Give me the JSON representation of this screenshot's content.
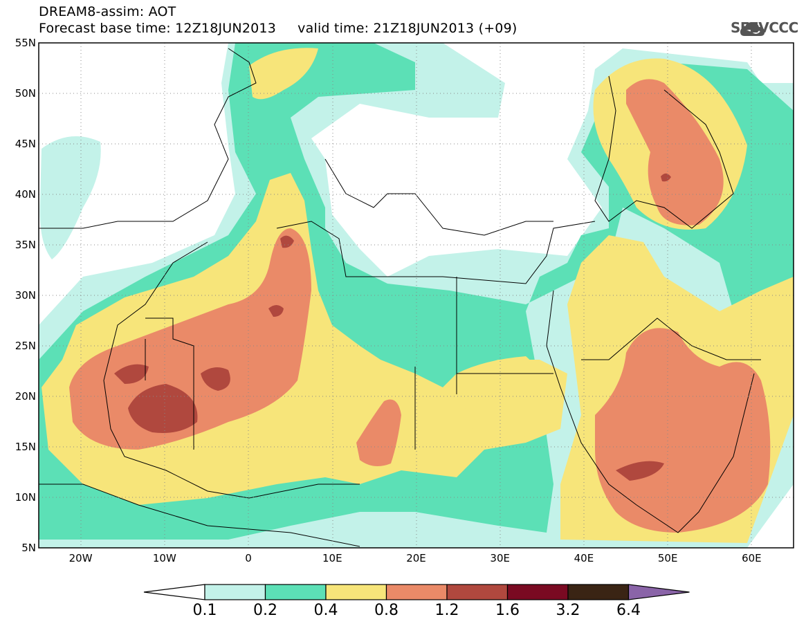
{
  "header": {
    "title_line1": "DREAM8-assim: AOT",
    "title_line2": "Forecast base time: 12Z18JUN2013     valid time: 21Z18JUN2013 (+09)"
  },
  "logo": {
    "text": "SEEVCCC",
    "icon": "cloud-icon"
  },
  "map": {
    "lon_range": [
      -25,
      65
    ],
    "lat_range": [
      5,
      55
    ],
    "lat_ticks": [
      "55N",
      "50N",
      "45N",
      "40N",
      "35N",
      "30N",
      "25N",
      "20N",
      "15N",
      "10N",
      "5N"
    ],
    "lon_ticks": [
      "20W",
      "10W",
      "0",
      "10E",
      "20E",
      "30E",
      "40E",
      "50E",
      "60E"
    ],
    "grid": "dotted"
  },
  "colorbar": {
    "labels": [
      "0.1",
      "0.2",
      "0.4",
      "0.8",
      "1.2",
      "1.6",
      "3.2",
      "6.4"
    ],
    "colors": [
      "#ffffff",
      "#c3f2e9",
      "#5ce0b6",
      "#f7e57a",
      "#ea8a68",
      "#b0483e",
      "#7a0a22",
      "#3a2414",
      "#8a64a8"
    ]
  }
}
